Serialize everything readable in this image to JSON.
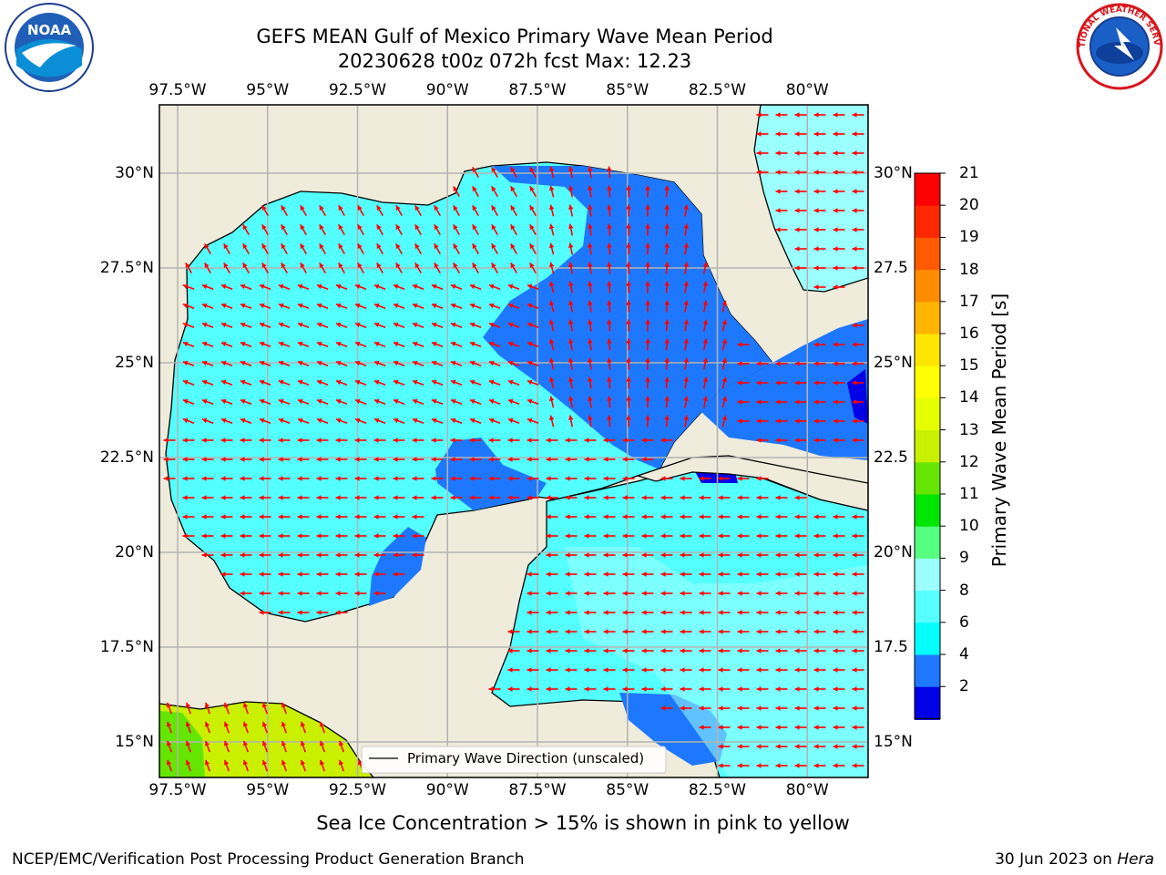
{
  "header": {
    "title_line1": "GEFS MEAN Gulf of Mexico Primary Wave Mean Period",
    "title_line2": "20230628 t00z 072h fcst   Max: 12.23"
  },
  "logos": {
    "left": {
      "icon": "noaa-logo-icon",
      "text": "NOAA"
    },
    "right": {
      "icon": "nws-logo-icon",
      "text": "NATIONAL WEATHER SERVICE"
    }
  },
  "map": {
    "lon_ticks": [
      "97.5°W",
      "95°W",
      "92.5°W",
      "90°W",
      "87.5°W",
      "85°W",
      "82.5°W",
      "80°W"
    ],
    "lat_ticks_left": [
      "30°N",
      "27.5°N",
      "25°N",
      "22.5°N",
      "20°N",
      "17.5°N",
      "15°N"
    ],
    "lat_ticks_right": [
      "30°N",
      "27.5",
      "25°N",
      "22.5",
      "20°N",
      "17.5",
      "15°N"
    ],
    "lon_values": [
      -97.5,
      -95,
      -92.5,
      -90,
      -87.5,
      -85,
      -82.5,
      -80
    ],
    "lat_values": [
      30,
      27.5,
      25,
      22.5,
      20,
      17.5,
      15
    ],
    "colors": {
      "land": "#efecdc",
      "grid": "#b3b3b3",
      "arrow": "#ff0000",
      "coast": "#000000"
    },
    "legend_label": "Primary Wave Direction (unscaled)"
  },
  "colorbar": {
    "label": "Primary Wave Mean Period [s]",
    "tick_labels": [
      "21",
      "20",
      "19",
      "18",
      "17",
      "16",
      "15",
      "14",
      "13",
      "12",
      "11",
      "10",
      "9",
      "8",
      "6",
      "4",
      "2"
    ],
    "colors": [
      "#0000e6",
      "#1e78ff",
      "#00ffff",
      "#55ffff",
      "#9bffff",
      "#55ff80",
      "#00e600",
      "#64e600",
      "#c8f000",
      "#e6ff00",
      "#ffff00",
      "#ffe600",
      "#ffb400",
      "#ff8c00",
      "#ff5a00",
      "#ff2800",
      "#ff0000"
    ],
    "extend_color": "#0000e6"
  },
  "footer": {
    "note": "Sea Ice Concentration > 15% is shown in pink to yellow",
    "credit_left": "NCEP/EMC/Verification Post Processing Product Generation Branch",
    "credit_right_date": "30 Jun 2023 on ",
    "credit_right_machine": "Hera"
  }
}
